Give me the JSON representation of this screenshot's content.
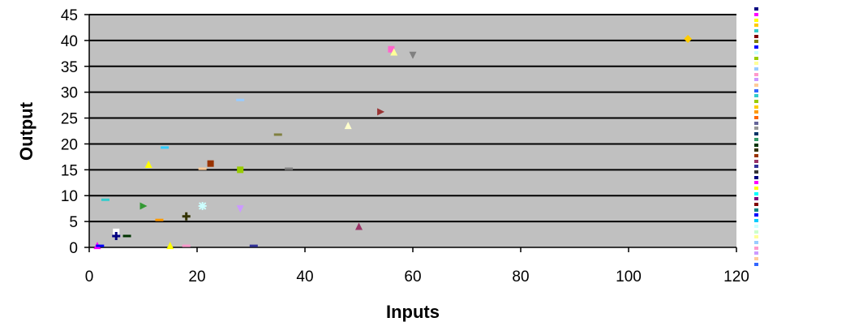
{
  "chart_data": {
    "type": "scatter",
    "title": "",
    "xlabel": "Inputs",
    "ylabel": "Output",
    "xlim": [
      0,
      120
    ],
    "ylim": [
      0,
      45
    ],
    "xticks": [
      "0",
      "20",
      "40",
      "60",
      "80",
      "100",
      "120"
    ],
    "yticks": [
      "0",
      "5",
      "10",
      "15",
      "20",
      "25",
      "30",
      "35",
      "40",
      "45"
    ],
    "grid": true,
    "background": "#c0c0c0",
    "legend_position": "right",
    "points": [
      {
        "x": 111,
        "y": 40.3,
        "color": "#ffcc00",
        "marker": "diamond"
      },
      {
        "x": 56,
        "y": 38.3,
        "color": "#ff66cc",
        "marker": "square"
      },
      {
        "x": 56.5,
        "y": 37.7,
        "color": "#ffff99",
        "marker": "triangle"
      },
      {
        "x": 60,
        "y": 37.2,
        "color": "#808080",
        "marker": "triangle-down"
      },
      {
        "x": 28,
        "y": 28.5,
        "color": "#99ccff",
        "marker": "dash"
      },
      {
        "x": 54,
        "y": 26.2,
        "color": "#993333",
        "marker": "triangle-right"
      },
      {
        "x": 48,
        "y": 23.5,
        "color": "#ffffcc",
        "marker": "triangle"
      },
      {
        "x": 35,
        "y": 21.8,
        "color": "#808040",
        "marker": "dash"
      },
      {
        "x": 14,
        "y": 19.3,
        "color": "#33ccff",
        "marker": "dash"
      },
      {
        "x": 11,
        "y": 16,
        "color": "#ffff00",
        "marker": "triangle"
      },
      {
        "x": 22.5,
        "y": 16.2,
        "color": "#993300",
        "marker": "square"
      },
      {
        "x": 21,
        "y": 15.2,
        "color": "#ffcc99",
        "marker": "dash"
      },
      {
        "x": 28,
        "y": 15,
        "color": "#99cc00",
        "marker": "square"
      },
      {
        "x": 37,
        "y": 15.2,
        "color": "#808080",
        "marker": "dash"
      },
      {
        "x": 3,
        "y": 9.2,
        "color": "#33cccc",
        "marker": "dash"
      },
      {
        "x": 10,
        "y": 8,
        "color": "#339933",
        "marker": "triangle-right"
      },
      {
        "x": 21,
        "y": 8,
        "color": "#ccffff",
        "marker": "star"
      },
      {
        "x": 28,
        "y": 7.5,
        "color": "#cc99ff",
        "marker": "triangle-down"
      },
      {
        "x": 18,
        "y": 6,
        "color": "#333300",
        "marker": "plus"
      },
      {
        "x": 13,
        "y": 5.3,
        "color": "#ff9900",
        "marker": "dash"
      },
      {
        "x": 50,
        "y": 4,
        "color": "#993366",
        "marker": "triangle"
      },
      {
        "x": 5,
        "y": 3,
        "color": "#ffffff",
        "marker": "square"
      },
      {
        "x": 5,
        "y": 2.2,
        "color": "#000080",
        "marker": "plus"
      },
      {
        "x": 7,
        "y": 2.2,
        "color": "#003300",
        "marker": "dash"
      },
      {
        "x": 1.5,
        "y": 0.3,
        "color": "#ff00ff",
        "marker": "triangle"
      },
      {
        "x": 2,
        "y": 0.3,
        "color": "#0000ff",
        "marker": "dash"
      },
      {
        "x": 15,
        "y": 0.3,
        "color": "#ffff00",
        "marker": "triangle"
      },
      {
        "x": 18,
        "y": 0.3,
        "color": "#ff99cc",
        "marker": "dash"
      },
      {
        "x": 30.5,
        "y": 0.3,
        "color": "#333399",
        "marker": "dash"
      }
    ],
    "legend_swatch_colors": [
      "#000080",
      "#ff00ff",
      "#ffff00",
      "#ffcc00",
      "#33cccc",
      "#800000",
      "#808000",
      "#0000ff",
      "#ccffff",
      "#99cc00",
      "#ffff99",
      "#99ccff",
      "#ff99cc",
      "#cc99ff",
      "#ffcc99",
      "#3366ff",
      "#33cccc",
      "#99cc00",
      "#ffcc00",
      "#ff9900",
      "#ff6600",
      "#666699",
      "#969696",
      "#003366",
      "#339966",
      "#003300",
      "#333300",
      "#993300",
      "#993366",
      "#333399",
      "#333333",
      "#000080",
      "#ff00ff",
      "#ffff00",
      "#00ffff",
      "#800080",
      "#800000",
      "#008080",
      "#0000ff",
      "#00ccff",
      "#ccffff",
      "#ccffcc",
      "#ffff99",
      "#99ccff",
      "#ff99cc",
      "#cc99ff",
      "#ffcc99",
      "#3366ff"
    ]
  }
}
